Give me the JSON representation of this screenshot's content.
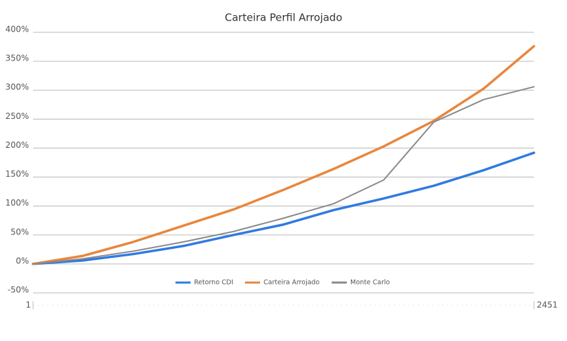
{
  "chart_data": {
    "type": "line",
    "title": "Carteira Perfil Arrojado",
    "x": [
      1,
      246,
      491,
      736,
      981,
      1226,
      1471,
      1716,
      1961,
      2206,
      2451
    ],
    "series": [
      {
        "name": "Retorno CDI",
        "color": "#2f7be0",
        "width": 3.5,
        "values": [
          0,
          6,
          17,
          31,
          50,
          68,
          93,
          113,
          135,
          162,
          192
        ]
      },
      {
        "name": "Carteira Arrojado",
        "color": "#e8863d",
        "width": 3.5,
        "values": [
          0,
          14,
          38,
          66,
          94,
          128,
          164,
          203,
          247,
          303,
          376
        ]
      },
      {
        "name": "Monte Carlo",
        "color": "#8a8a8a",
        "width": 2,
        "values": [
          0,
          9,
          22,
          38,
          56,
          79,
          104,
          145,
          245,
          284,
          306
        ]
      }
    ],
    "xlim": [
      1,
      2451
    ],
    "xticks": [
      1,
      2451
    ],
    "ylim": [
      -50,
      400
    ],
    "yticks": [
      {
        "value": -50,
        "label": "-50%"
      },
      {
        "value": 0,
        "label": "0%"
      },
      {
        "value": 50,
        "label": "50%"
      },
      {
        "value": 100,
        "label": "100%"
      },
      {
        "value": 150,
        "label": "150%"
      },
      {
        "value": 200,
        "label": "200%"
      },
      {
        "value": 250,
        "label": "250%"
      },
      {
        "value": 300,
        "label": "300%"
      },
      {
        "value": 350,
        "label": "350%"
      },
      {
        "value": 400,
        "label": "400%"
      }
    ],
    "grid": true,
    "legend": "bottom"
  }
}
